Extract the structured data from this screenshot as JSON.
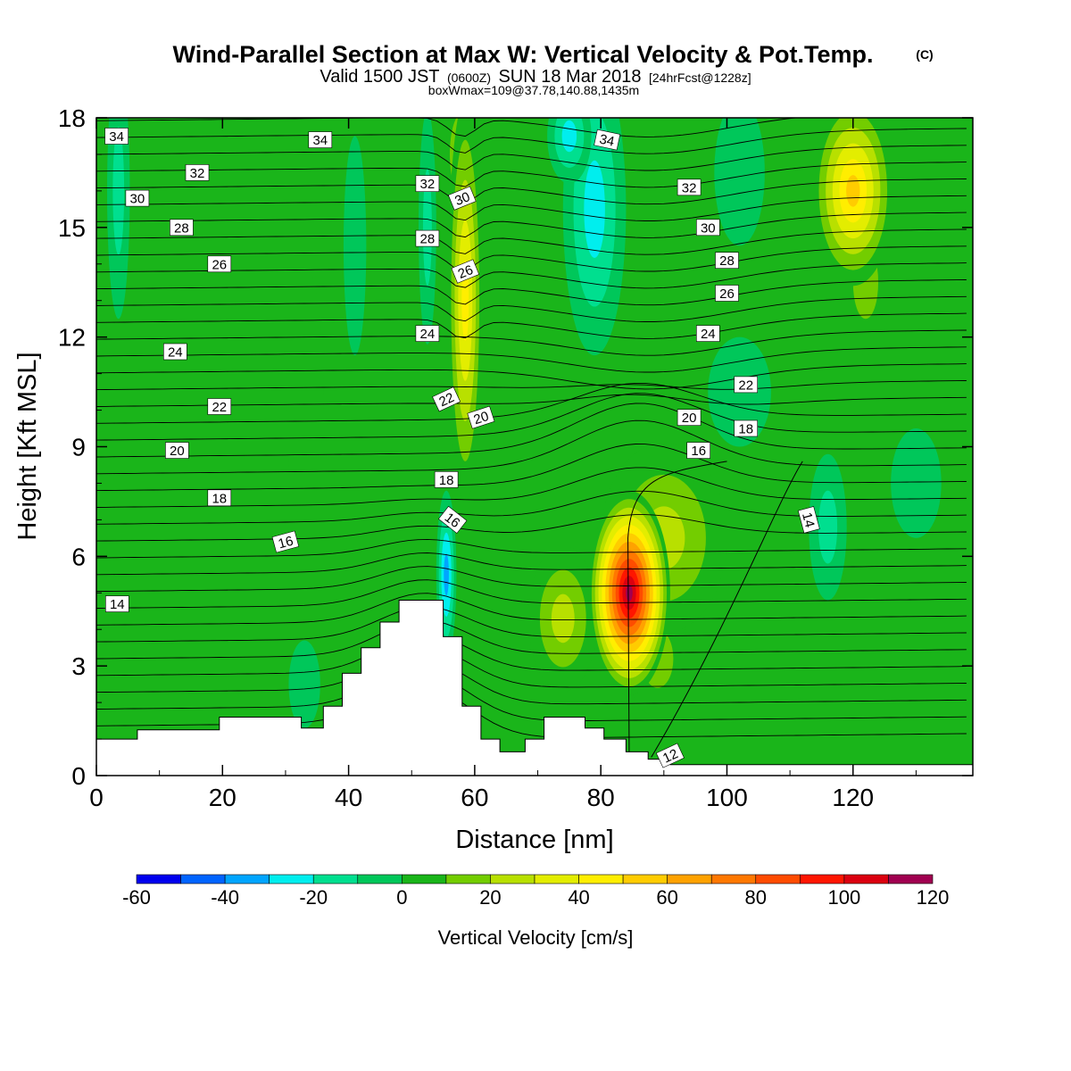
{
  "title": {
    "main": "Wind-Parallel Section at Max W: Vertical Velocity & Pot.Temp.",
    "mark": "(C)",
    "valid_a": "Valid 1500 JST",
    "valid_utc": "(0600Z)",
    "valid_b": "SUN 18 Mar 2018",
    "fcst": "[24hrFcst@1228z]",
    "boxmax": "boxWmax=109@37.78,140.88,1435m"
  },
  "chart_data": {
    "type": "heatmap",
    "xlabel": "Distance [nm]",
    "ylabel": "Height [Kft MSL]",
    "xlim": [
      0,
      139
    ],
    "ylim": [
      0,
      18
    ],
    "xticks": [
      0,
      20,
      40,
      60,
      80,
      100,
      120
    ],
    "yticks": [
      0,
      3,
      6,
      9,
      12,
      15,
      18
    ],
    "colorbar": {
      "label": "Vertical Velocity [cm/s]",
      "ticks": [
        -60,
        -40,
        -20,
        0,
        20,
        40,
        60,
        80,
        100,
        120
      ],
      "levels": [
        -60,
        -50,
        -40,
        -30,
        -20,
        -10,
        0,
        10,
        20,
        30,
        40,
        50,
        60,
        70,
        80,
        90,
        100,
        110,
        120
      ],
      "colors": [
        "#0000ee",
        "#0064ff",
        "#00a5ff",
        "#00eeee",
        "#00df8f",
        "#00c75a",
        "#1ab51a",
        "#73cd00",
        "#b8e000",
        "#e3ed00",
        "#ffee00",
        "#ffcc00",
        "#ffa200",
        "#ff7800",
        "#ff4c00",
        "#ff1600",
        "#db0010",
        "#a00050"
      ]
    },
    "background_color": "#1ab51a",
    "w_features": [
      {
        "name": "updraft-core",
        "x": 84.5,
        "z": 5.0,
        "w": 120
      },
      {
        "name": "updraft-shoulder",
        "x": 90,
        "z": 6.5,
        "w": 35
      },
      {
        "name": "updraft-left",
        "x": 74,
        "z": 4.3,
        "w": 35
      },
      {
        "name": "updraft-lee",
        "x": 89,
        "z": 3.2,
        "w": 25
      },
      {
        "name": "upper-updraft",
        "x": 58.5,
        "z": 13,
        "w": 55
      },
      {
        "name": "upper-updraft-top",
        "x": 58,
        "z": 17,
        "w": 40
      },
      {
        "name": "upper-right-updraft",
        "x": 120,
        "z": 16,
        "w": 60
      },
      {
        "name": "upper-right-updraft-low",
        "x": 122,
        "z": 13.5,
        "w": 25
      },
      {
        "name": "mountain-downdraft",
        "x": 55.5,
        "z": 5.5,
        "w": -45
      },
      {
        "name": "upper-downdraft",
        "x": 52.5,
        "z": 15,
        "w": -25
      },
      {
        "name": "downdraft-mid",
        "x": 79,
        "z": 15.5,
        "w": -30
      },
      {
        "name": "downdraft-top",
        "x": 75,
        "z": 17.5,
        "w": -35
      },
      {
        "name": "downdraft-left-edge",
        "x": 3.5,
        "z": 16,
        "w": -25
      },
      {
        "name": "downdraft-right-low",
        "x": 116,
        "z": 6.8,
        "w": -25
      },
      {
        "name": "weak-up-upper-left",
        "x": 33,
        "z": 10.5,
        "w": 15
      },
      {
        "name": "weak-up-left",
        "x": 17,
        "z": 8.5,
        "w": 8
      },
      {
        "name": "weak-up-mountain",
        "x": 46.5,
        "z": 7.0,
        "w": 15
      },
      {
        "name": "weak-down-low-left",
        "x": 33,
        "z": 2.5,
        "w": -15
      },
      {
        "name": "weak-down-mid-left",
        "x": 41,
        "z": 14.5,
        "w": -12
      },
      {
        "name": "weak-down-upper-right",
        "x": 102,
        "z": 16.5,
        "w": -12
      },
      {
        "name": "weak-down-mid-right",
        "x": 102,
        "z": 10.5,
        "w": -12
      },
      {
        "name": "downdraft-far-right",
        "x": 130,
        "z": 8.0,
        "w": -12
      }
    ],
    "terrain_kft": [
      [
        0,
        1.0
      ],
      [
        6.5,
        1.0
      ],
      [
        6.5,
        1.25
      ],
      [
        19.5,
        1.25
      ],
      [
        19.5,
        1.6
      ],
      [
        32.5,
        1.6
      ],
      [
        32.5,
        1.3
      ],
      [
        36,
        1.3
      ],
      [
        36,
        1.9
      ],
      [
        39,
        1.9
      ],
      [
        39,
        2.8
      ],
      [
        42,
        2.8
      ],
      [
        42,
        3.5
      ],
      [
        45,
        3.5
      ],
      [
        45,
        4.2
      ],
      [
        48,
        4.2
      ],
      [
        48,
        4.8
      ],
      [
        55,
        4.8
      ],
      [
        55,
        3.8
      ],
      [
        58,
        3.8
      ],
      [
        58,
        1.9
      ],
      [
        61,
        1.9
      ],
      [
        61,
        1.0
      ],
      [
        64,
        1.0
      ],
      [
        64,
        0.65
      ],
      [
        68,
        0.65
      ],
      [
        68,
        1.0
      ],
      [
        71,
        1.0
      ],
      [
        71,
        1.6
      ],
      [
        77.5,
        1.6
      ],
      [
        77.5,
        1.3
      ],
      [
        80.5,
        1.3
      ],
      [
        80.5,
        1.0
      ],
      [
        84,
        1.0
      ],
      [
        84,
        0.65
      ],
      [
        87.5,
        0.65
      ],
      [
        87.5,
        0.45
      ],
      [
        91,
        0.45
      ],
      [
        91,
        0.3
      ],
      [
        139,
        0.3
      ]
    ],
    "theta_contours": {
      "label_levels": [
        "12",
        "14",
        "16",
        "18",
        "20",
        "22",
        "24",
        "26",
        "28",
        "30",
        "32",
        "34"
      ],
      "labels": [
        {
          "text": "34",
          "x": 3.2,
          "z": 17.5,
          "rot": 0
        },
        {
          "text": "34",
          "x": 35.5,
          "z": 17.4,
          "rot": 0
        },
        {
          "text": "34",
          "x": 81,
          "z": 17.4,
          "rot": 12
        },
        {
          "text": "32",
          "x": 16,
          "z": 16.5,
          "rot": 0
        },
        {
          "text": "32",
          "x": 52.5,
          "z": 16.2,
          "rot": 0
        },
        {
          "text": "32",
          "x": 94,
          "z": 16.1,
          "rot": 0
        },
        {
          "text": "30",
          "x": 6.5,
          "z": 15.8,
          "rot": 0
        },
        {
          "text": "30",
          "x": 58,
          "z": 15.8,
          "rot": -22
        },
        {
          "text": "30",
          "x": 97,
          "z": 15.0,
          "rot": 0
        },
        {
          "text": "28",
          "x": 13.5,
          "z": 15.0,
          "rot": 0
        },
        {
          "text": "28",
          "x": 52.5,
          "z": 14.7,
          "rot": 0
        },
        {
          "text": "28",
          "x": 100,
          "z": 14.1,
          "rot": 0
        },
        {
          "text": "26",
          "x": 19.5,
          "z": 14.0,
          "rot": 0
        },
        {
          "text": "26",
          "x": 58.5,
          "z": 13.8,
          "rot": -22
        },
        {
          "text": "26",
          "x": 100,
          "z": 13.2,
          "rot": 0
        },
        {
          "text": "24",
          "x": 12.5,
          "z": 11.6,
          "rot": 0
        },
        {
          "text": "24",
          "x": 52.5,
          "z": 12.1,
          "rot": 0
        },
        {
          "text": "24",
          "x": 97,
          "z": 12.1,
          "rot": 0
        },
        {
          "text": "22",
          "x": 19.5,
          "z": 10.1,
          "rot": 0
        },
        {
          "text": "22",
          "x": 55.5,
          "z": 10.3,
          "rot": -25
        },
        {
          "text": "22",
          "x": 103,
          "z": 10.7,
          "rot": 0
        },
        {
          "text": "20",
          "x": 12.8,
          "z": 8.9,
          "rot": 0
        },
        {
          "text": "20",
          "x": 61,
          "z": 9.8,
          "rot": -18
        },
        {
          "text": "20",
          "x": 94,
          "z": 9.8,
          "rot": 0
        },
        {
          "text": "18",
          "x": 19.5,
          "z": 7.6,
          "rot": 0
        },
        {
          "text": "18",
          "x": 55.5,
          "z": 8.1,
          "rot": 0
        },
        {
          "text": "18",
          "x": 103,
          "z": 9.5,
          "rot": 0
        },
        {
          "text": "16",
          "x": 30,
          "z": 6.4,
          "rot": -15
        },
        {
          "text": "16",
          "x": 56.5,
          "z": 7.0,
          "rot": 38
        },
        {
          "text": "16",
          "x": 95.5,
          "z": 8.9,
          "rot": 0
        },
        {
          "text": "14",
          "x": 3.3,
          "z": 4.7,
          "rot": 0
        },
        {
          "text": "14",
          "x": 113,
          "z": 7.0,
          "rot": 75
        },
        {
          "text": "12",
          "x": 91,
          "z": 0.55,
          "rot": -25
        }
      ]
    }
  }
}
